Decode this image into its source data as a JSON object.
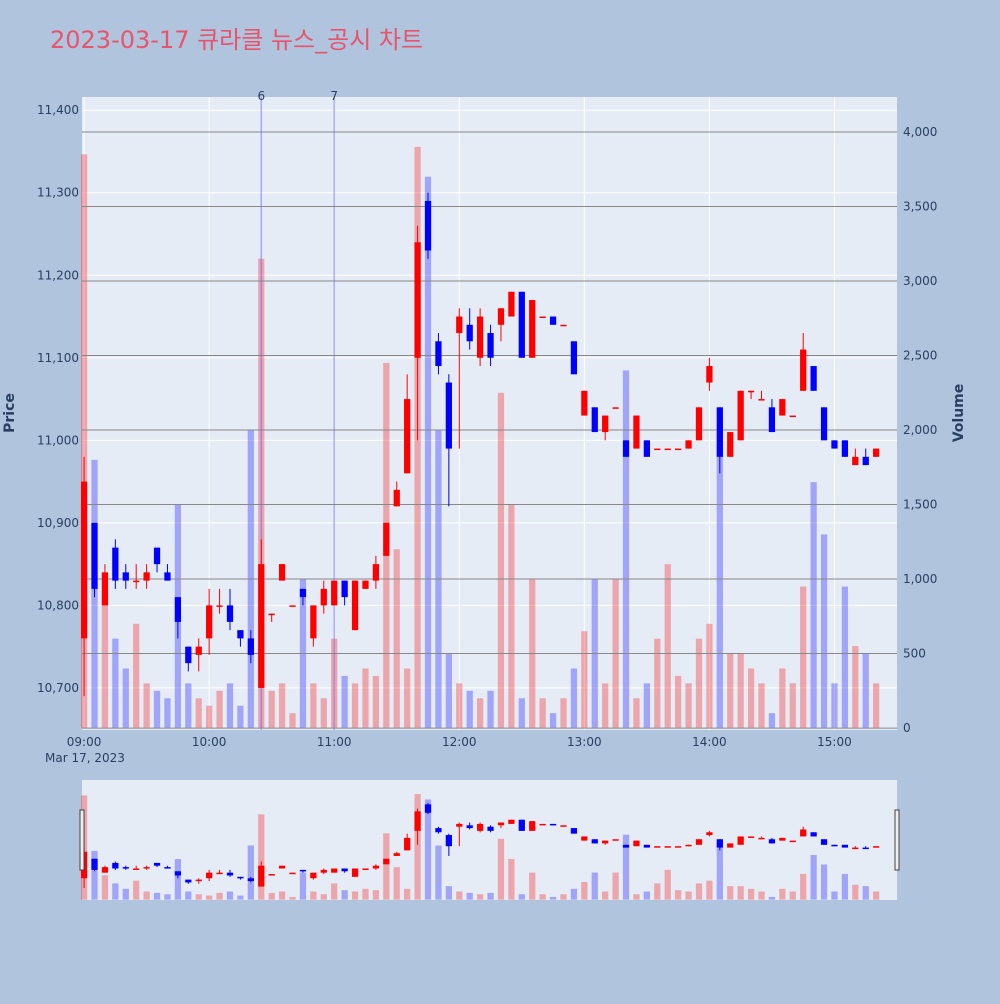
{
  "chart_data": {
    "type": "candlestick",
    "title": "2023-03-17 큐라클 뉴스_공시 차트",
    "ylabel": "Price",
    "y2label": "Volume",
    "date_label": "Mar 17, 2023",
    "increasing_color": "#ff0000",
    "decreasing_color": "#0000ff",
    "x": [
      "09:00",
      "09:05",
      "09:10",
      "09:15",
      "09:20",
      "09:25",
      "09:30",
      "09:35",
      "09:40",
      "09:45",
      "09:50",
      "09:55",
      "10:00",
      "10:05",
      "10:10",
      "10:15",
      "10:20",
      "10:25",
      "10:30",
      "10:35",
      "10:40",
      "10:45",
      "10:50",
      "10:55",
      "11:00",
      "11:05",
      "11:10",
      "11:15",
      "11:20",
      "11:25",
      "11:30",
      "11:35",
      "11:40",
      "11:45",
      "11:50",
      "11:55",
      "12:00",
      "12:05",
      "12:10",
      "12:15",
      "12:20",
      "12:25",
      "12:30",
      "12:35",
      "12:40",
      "12:45",
      "12:50",
      "12:55",
      "13:00",
      "13:05",
      "13:10",
      "13:15",
      "13:20",
      "13:25",
      "13:30",
      "13:35",
      "13:40",
      "13:45",
      "13:50",
      "13:55",
      "14:00",
      "14:05",
      "14:10",
      "14:15",
      "14:20",
      "14:25",
      "14:30",
      "14:35",
      "14:40",
      "14:45",
      "14:50",
      "14:55",
      "15:00",
      "15:05",
      "15:10",
      "15:15",
      "15:20"
    ],
    "open": [
      10760,
      10900,
      10800,
      10870,
      10840,
      10830,
      10830,
      10870,
      10840,
      10810,
      10750,
      10740,
      10760,
      10800,
      10800,
      10770,
      10760,
      10700,
      10790,
      10830,
      10800,
      10820,
      10760,
      10800,
      10800,
      10830,
      10770,
      10820,
      10830,
      10860,
      10920,
      10960,
      11100,
      11290,
      11120,
      11070,
      11130,
      11140,
      11100,
      11130,
      11140,
      11150,
      11180,
      11100,
      11150,
      11150,
      11140,
      11120,
      11030,
      11040,
      11010,
      11040,
      11000,
      10990,
      11000,
      10990,
      10990,
      10990,
      10990,
      11000,
      11070,
      11040,
      10980,
      11000,
      11060,
      11050,
      11040,
      11030,
      11030,
      11060,
      11090,
      11040,
      11000,
      11000,
      10970,
      10980,
      10980
    ],
    "high": [
      10980,
      10900,
      10850,
      10880,
      10850,
      10850,
      10850,
      10870,
      10850,
      10810,
      10750,
      10760,
      10820,
      10820,
      10820,
      10770,
      10770,
      10880,
      10790,
      10850,
      10800,
      10820,
      10800,
      10830,
      10830,
      10830,
      10830,
      10830,
      10860,
      10900,
      10950,
      11080,
      11260,
      11300,
      11130,
      11080,
      11160,
      11160,
      11160,
      11140,
      11160,
      11180,
      11180,
      11170,
      11150,
      11150,
      11140,
      11120,
      11060,
      11040,
      11030,
      11040,
      11000,
      11030,
      11000,
      10990,
      10990,
      10990,
      11000,
      11040,
      11100,
      11040,
      11010,
      11060,
      11060,
      11060,
      11050,
      11050,
      11030,
      11130,
      11090,
      11040,
      11000,
      11000,
      10990,
      10990,
      10990
    ],
    "low": [
      10690,
      10810,
      10800,
      10820,
      10820,
      10820,
      10820,
      10840,
      10830,
      10760,
      10720,
      10720,
      10740,
      10790,
      10770,
      10750,
      10730,
      10700,
      10780,
      10830,
      10800,
      10800,
      10750,
      10790,
      10800,
      10800,
      10770,
      10820,
      10820,
      10860,
      10920,
      10960,
      11000,
      11220,
      11080,
      10920,
      10990,
      11110,
      11090,
      11090,
      11120,
      11150,
      11100,
      11100,
      11150,
      11140,
      11140,
      11080,
      11030,
      11010,
      11000,
      11040,
      10980,
      10990,
      10980,
      10990,
      10990,
      10990,
      10990,
      11000,
      11060,
      10960,
      10980,
      11000,
      11050,
      11050,
      11010,
      11030,
      11030,
      11060,
      11060,
      11000,
      10990,
      10980,
      10970,
      10970,
      10980
    ],
    "close": [
      10950,
      10820,
      10840,
      10830,
      10830,
      10830,
      10840,
      10850,
      10830,
      10780,
      10730,
      10750,
      10800,
      10800,
      10780,
      10760,
      10740,
      10850,
      10790,
      10850,
      10800,
      10810,
      10800,
      10820,
      10830,
      10810,
      10830,
      10830,
      10850,
      10900,
      10940,
      11050,
      11240,
      11230,
      11090,
      10990,
      11150,
      11120,
      11150,
      11100,
      11160,
      11180,
      11100,
      11170,
      11150,
      11140,
      11140,
      11080,
      11060,
      11010,
      11030,
      11040,
      10980,
      11030,
      10980,
      10990,
      10990,
      10990,
      11000,
      11040,
      11090,
      10980,
      11010,
      11060,
      11060,
      11050,
      11010,
      11050,
      11030,
      11110,
      11060,
      11000,
      10990,
      10980,
      10980,
      10970,
      10990
    ],
    "volume": [
      3850,
      1800,
      900,
      600,
      400,
      700,
      300,
      250,
      200,
      1500,
      300,
      200,
      150,
      250,
      300,
      150,
      2000,
      3150,
      250,
      300,
      100,
      1000,
      300,
      200,
      600,
      350,
      300,
      400,
      350,
      2450,
      1200,
      400,
      3900,
      3700,
      2000,
      500,
      300,
      250,
      200,
      250,
      2250,
      1500,
      200,
      1000,
      200,
      100,
      200,
      400,
      650,
      1000,
      300,
      1000,
      2400,
      200,
      300,
      600,
      1100,
      350,
      300,
      600,
      700,
      2000,
      500,
      500,
      400,
      300,
      100,
      400,
      300,
      950,
      1650,
      1300,
      300,
      950,
      550,
      500,
      300
    ],
    "xlim": [
      "08:59",
      "15:30"
    ],
    "xticks": [
      "09:00",
      "10:00",
      "11:00",
      "12:00",
      "13:00",
      "14:00",
      "15:00"
    ],
    "ylim": [
      10649,
      11416
    ],
    "yticks": [
      {
        "value": 10700,
        "label": "10,700"
      },
      {
        "value": 10800,
        "label": "10,800"
      },
      {
        "value": 10900,
        "label": "10,900"
      },
      {
        "value": 11000,
        "label": "11,000"
      },
      {
        "value": 11100,
        "label": "11,100"
      },
      {
        "value": 11200,
        "label": "11,200"
      },
      {
        "value": 11300,
        "label": "11,300"
      },
      {
        "value": 11400,
        "label": "11,400"
      }
    ],
    "y2lim": [
      -13,
      4235
    ],
    "y2ticks": [
      0,
      500,
      {
        "value": 1000,
        "label": "1,000"
      },
      {
        "value": 1500,
        "label": "1,500"
      },
      {
        "value": 2000,
        "label": "2,000"
      },
      {
        "value": 2500,
        "label": "2,500"
      },
      {
        "value": 3000,
        "label": "3,000"
      },
      {
        "value": 3500,
        "label": "3,500"
      },
      {
        "value": 4000,
        "label": "4,000"
      }
    ],
    "annotations": [
      {
        "x": "10:25",
        "label": "6"
      },
      {
        "x": "11:00",
        "label": "7"
      }
    ],
    "rangeslider": true
  }
}
